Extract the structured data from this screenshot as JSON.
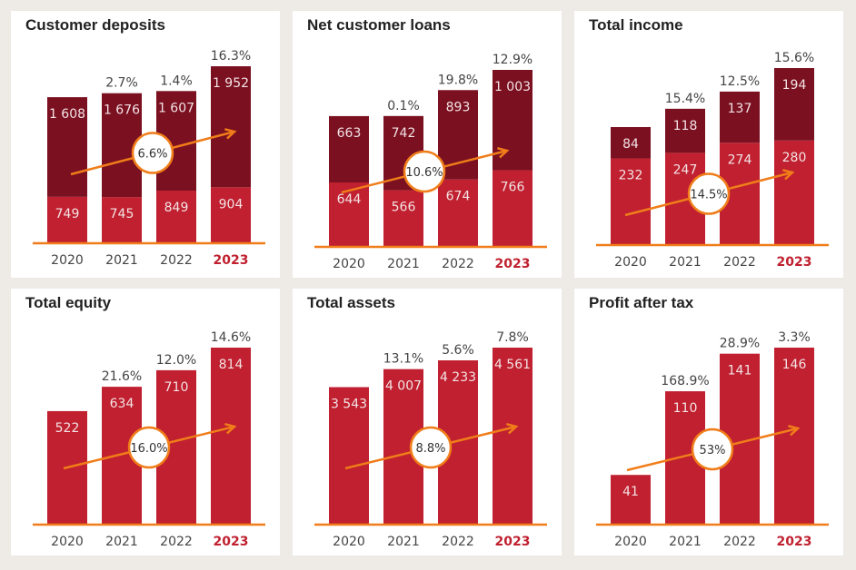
{
  "colors": {
    "primary": "#c0202f",
    "secondary": "#7a1020",
    "accent": "#f07d1a",
    "highlight_year": "#c0202f"
  },
  "chart_data": [
    {
      "type": "bar",
      "stacked": true,
      "title": "Customer deposits",
      "categories": [
        "2020",
        "2021",
        "2022",
        "2023"
      ],
      "series": [
        {
          "name": "lower",
          "values": [
            749,
            745,
            849,
            904
          ],
          "labels": [
            "749",
            "745",
            "849",
            "904"
          ]
        },
        {
          "name": "upper",
          "values": [
            1608,
            1676,
            1607,
            1952
          ],
          "labels": [
            "1 608",
            "1 676",
            "1 607",
            "1 952"
          ]
        }
      ],
      "growth": [
        "",
        "2.7%",
        "1.4%",
        "16.3%"
      ],
      "cagr": "6.6%"
    },
    {
      "type": "bar",
      "stacked": true,
      "title": "Net customer loans",
      "categories": [
        "2020",
        "2021",
        "2022",
        "2023"
      ],
      "series": [
        {
          "name": "lower",
          "values": [
            644,
            566,
            674,
            766
          ],
          "labels": [
            "644",
            "566",
            "674",
            "766"
          ]
        },
        {
          "name": "upper",
          "values": [
            663,
            742,
            893,
            1003
          ],
          "labels": [
            "663",
            "742",
            "893",
            "1 003"
          ]
        }
      ],
      "growth": [
        "",
        "0.1%",
        "19.8%",
        "12.9%"
      ],
      "cagr": "10.6%"
    },
    {
      "type": "bar",
      "stacked": true,
      "title": "Total income",
      "categories": [
        "2020",
        "2021",
        "2022",
        "2023"
      ],
      "series": [
        {
          "name": "lower",
          "values": [
            232,
            247,
            274,
            280
          ],
          "labels": [
            "232",
            "247",
            "274",
            "280"
          ]
        },
        {
          "name": "upper",
          "values": [
            84,
            118,
            137,
            194
          ],
          "labels": [
            "84",
            "118",
            "137",
            "194"
          ]
        }
      ],
      "growth": [
        "",
        "15.4%",
        "12.5%",
        "15.6%"
      ],
      "cagr": "14.5%"
    },
    {
      "type": "bar",
      "stacked": false,
      "title": "Total equity",
      "categories": [
        "2020",
        "2021",
        "2022",
        "2023"
      ],
      "series": [
        {
          "name": "value",
          "values": [
            522,
            634,
            710,
            814
          ],
          "labels": [
            "522",
            "634",
            "710",
            "814"
          ]
        }
      ],
      "growth": [
        "",
        "21.6%",
        "12.0%",
        "14.6%"
      ],
      "cagr": "16.0%"
    },
    {
      "type": "bar",
      "stacked": false,
      "title": "Total assets",
      "categories": [
        "2020",
        "2021",
        "2022",
        "2023"
      ],
      "series": [
        {
          "name": "value",
          "values": [
            3543,
            4007,
            4233,
            4561
          ],
          "labels": [
            "3 543",
            "4 007",
            "4 233",
            "4 561"
          ]
        }
      ],
      "growth": [
        "",
        "13.1%",
        "5.6%",
        "7.8%"
      ],
      "cagr": "8.8%"
    },
    {
      "type": "bar",
      "stacked": false,
      "title": "Profit after tax",
      "categories": [
        "2020",
        "2021",
        "2022",
        "2023"
      ],
      "series": [
        {
          "name": "value",
          "values": [
            41,
            110,
            141,
            146
          ],
          "labels": [
            "41",
            "110",
            "141",
            "146"
          ]
        }
      ],
      "growth": [
        "",
        "168.9%",
        "28.9%",
        "3.3%"
      ],
      "cagr": "53%"
    }
  ]
}
